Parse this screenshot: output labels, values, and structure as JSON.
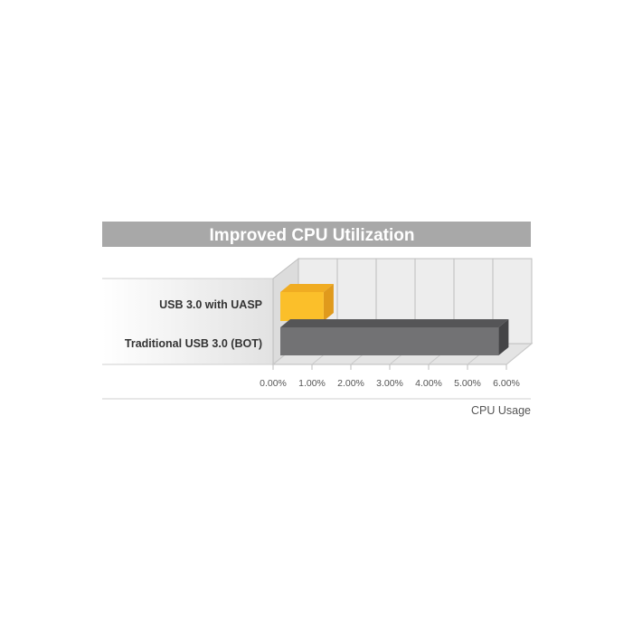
{
  "chart_data": {
    "type": "bar",
    "orientation": "horizontal",
    "style": "3d",
    "title": "Improved CPU Utilization",
    "xlabel": "CPU Usage",
    "ylabel": "",
    "categories": [
      "USB 3.0 with UASP",
      "Traditional USB 3.0 (BOT)"
    ],
    "values": [
      1.3,
      5.8
    ],
    "unit": "%",
    "xlim": [
      0,
      6
    ],
    "x_ticks": [
      "0.00%",
      "1.00%",
      "2.00%",
      "3.00%",
      "4.00%",
      "5.00%",
      "6.00%"
    ],
    "grid": true,
    "colors": {
      "uasp": "#fbbf2a",
      "bot": "#727274",
      "title_bar": "#a8a8a8"
    }
  }
}
